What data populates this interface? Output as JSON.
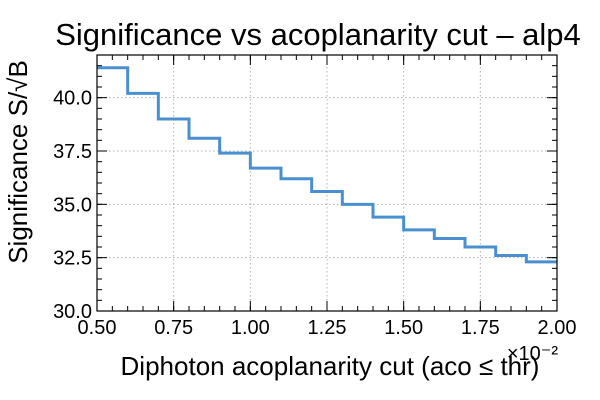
{
  "chart_data": {
    "type": "line",
    "title": "Significance vs acoplanarity cut – alp4",
    "xlabel": "Diphoton acoplanarity cut (aco ≤ thr)",
    "ylabel": "Significance S/√B",
    "x_offset_label": "×10⁻²",
    "xlim": [
      0.5,
      2.0
    ],
    "ylim": [
      30.0,
      42.0
    ],
    "xticks": [
      0.5,
      0.75,
      1.0,
      1.25,
      1.5,
      1.75,
      2.0
    ],
    "xtick_labels": [
      "0.50",
      "0.75",
      "1.00",
      "1.25",
      "1.50",
      "1.75",
      "2.00"
    ],
    "yticks": [
      30.0,
      32.5,
      35.0,
      37.5,
      40.0
    ],
    "ytick_labels": [
      "30.0",
      "32.5",
      "35.0",
      "37.5",
      "40.0"
    ],
    "grid": true,
    "step": "post",
    "series_color": "#4a90d0",
    "series": [
      {
        "x": [
          0.5,
          0.6,
          0.7,
          0.8,
          0.9,
          1.0,
          1.1,
          1.2,
          1.3,
          1.4,
          1.5,
          1.6,
          1.7,
          1.8,
          1.9,
          2.0
        ],
        "y": [
          41.4,
          40.2,
          39.0,
          38.1,
          37.4,
          36.7,
          36.2,
          35.6,
          35.0,
          34.4,
          33.8,
          33.4,
          33.0,
          32.6,
          32.3,
          32.3
        ]
      }
    ]
  }
}
